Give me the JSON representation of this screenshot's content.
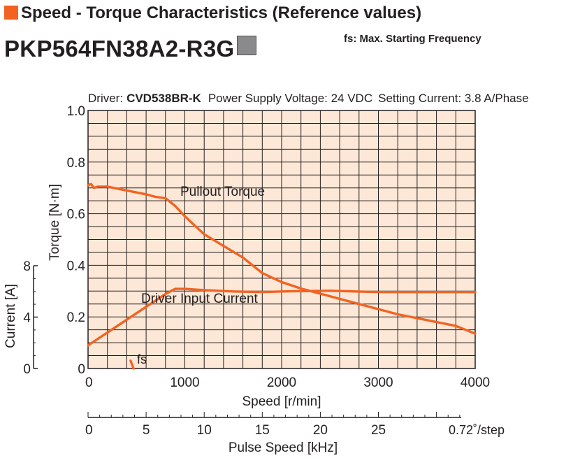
{
  "header": {
    "section_title": "Speed - Torque Characteristics (Reference values)",
    "model": "PKP564FN38A2-R3G",
    "fs_note": "fs: Max. Starting Frequency"
  },
  "conditions": {
    "driver_label": "Driver:",
    "driver_model": "CVD538BR-K",
    "power_supply": "Power Supply Voltage: 24 VDC",
    "setting_current": "Setting Current: 3.8 A/Phase"
  },
  "colors": {
    "plot_background": "#fde8d7",
    "grid": "#231f20",
    "curve": "#f26322",
    "accent_square": "#f26322",
    "gray_square": "#8a8a8c"
  },
  "chart_data": {
    "type": "line",
    "xlabel": "Speed [r/min]",
    "ylabel": "Torque [N·m]",
    "y2label": "Current [A]",
    "x2label": "Pulse Speed [kHz]",
    "x2_unit_note": "0.72˚/step",
    "xlim": [
      0,
      4000
    ],
    "ylim": [
      0,
      1.0
    ],
    "y2lim": [
      0,
      8
    ],
    "x_ticks": [
      "0",
      "1000",
      "2000",
      "3000",
      "4000"
    ],
    "y_ticks": [
      "0",
      "0.2",
      "0.4",
      "0.6",
      "0.8",
      "1.0"
    ],
    "y2_ticks": [
      "0",
      "4",
      "8"
    ],
    "x2_ticks": [
      "0",
      "5",
      "10",
      "15",
      "20",
      "25"
    ],
    "x2_tick_values": [
      0,
      5,
      10,
      15,
      20,
      25
    ],
    "x2_kHz_per_rpm": 0.008333,
    "grid": true,
    "series": [
      {
        "name": "Pullout Torque",
        "axis": "torque",
        "x": [
          0,
          30,
          60,
          100,
          200,
          400,
          600,
          700,
          800,
          900,
          1000,
          1200,
          1400,
          1600,
          1800,
          2000,
          2200,
          2400,
          2600,
          2800,
          3000,
          3200,
          3400,
          3600,
          3800,
          4000
        ],
        "y": [
          0.71,
          0.715,
          0.7,
          0.705,
          0.705,
          0.69,
          0.675,
          0.665,
          0.66,
          0.63,
          0.59,
          0.52,
          0.475,
          0.43,
          0.37,
          0.335,
          0.31,
          0.29,
          0.27,
          0.25,
          0.23,
          0.21,
          0.195,
          0.18,
          0.165,
          0.135
        ]
      },
      {
        "name": "Driver Input Current",
        "axis": "current",
        "x": [
          0,
          200,
          400,
          600,
          800,
          900,
          1000,
          1200,
          1500,
          1800,
          2000,
          2500,
          3000,
          3500,
          4000
        ],
        "y": [
          1.8,
          2.8,
          3.8,
          4.8,
          5.8,
          6.2,
          6.2,
          6.1,
          6.0,
          5.95,
          6.0,
          6.05,
          5.95,
          5.95,
          5.95
        ]
      },
      {
        "name": "fs",
        "axis": "torque",
        "x": [
          440,
          470
        ],
        "y": [
          0.03,
          0.0
        ]
      }
    ]
  }
}
